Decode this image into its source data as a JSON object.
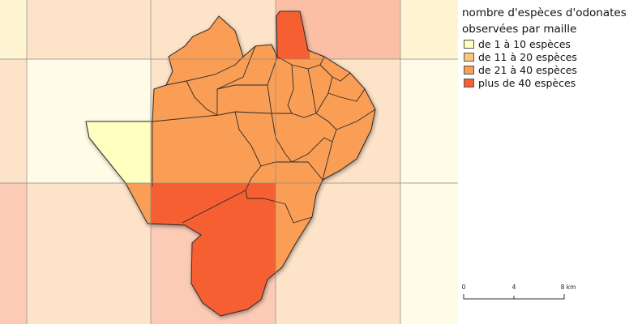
{
  "legend": {
    "title": "nombre d'espèces d'odonates observées par maille",
    "items": [
      {
        "label": "de 1 à 10 espèces",
        "color": "#ffffc0"
      },
      {
        "label": "de 11 à 20 espèces",
        "color": "#fdc47d"
      },
      {
        "label": "de 21 à 40 espèces",
        "color": "#fa9e55"
      },
      {
        "label": "plus de 40 espèces",
        "color": "#f65f32"
      }
    ]
  },
  "scale": {
    "ticks": [
      "0",
      "4",
      "8 km"
    ]
  }
}
